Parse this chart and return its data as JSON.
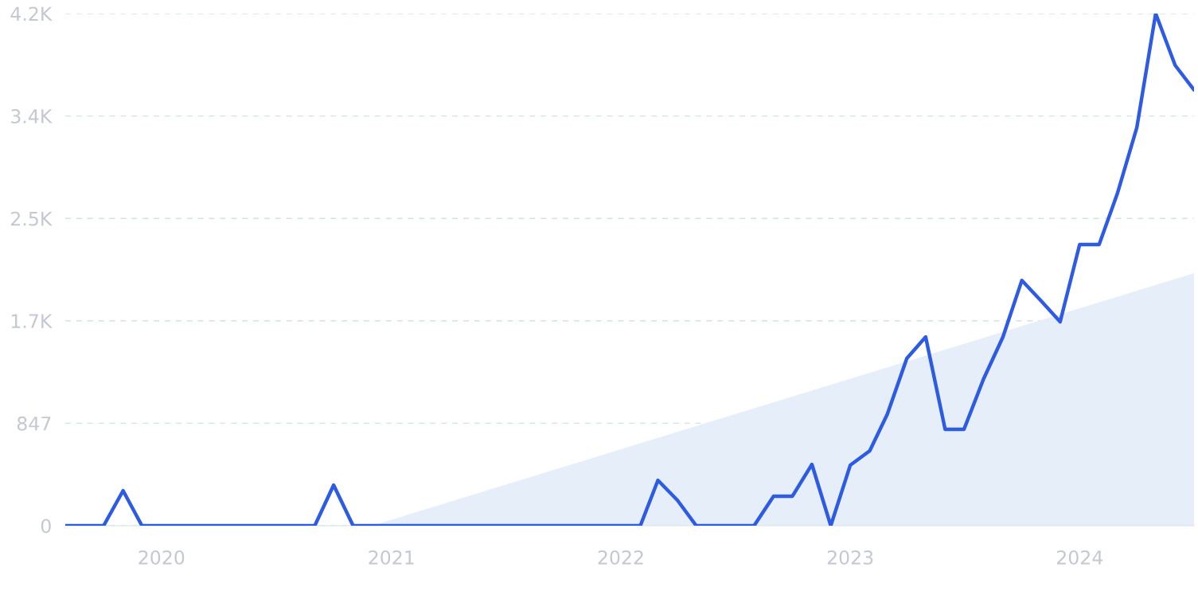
{
  "chart_data": {
    "type": "line",
    "x": [
      "2019-08",
      "2019-09",
      "2019-10",
      "2019-11",
      "2019-12",
      "2020-01",
      "2020-02",
      "2020-03",
      "2020-04",
      "2020-05",
      "2020-06",
      "2020-07",
      "2020-08",
      "2020-09",
      "2020-10",
      "2020-11",
      "2020-12",
      "2021-01",
      "2021-02",
      "2021-03",
      "2021-04",
      "2021-05",
      "2021-06",
      "2021-07",
      "2021-08",
      "2021-09",
      "2021-10",
      "2021-11",
      "2021-12",
      "2022-01",
      "2022-02",
      "2022-03",
      "2022-04",
      "2022-05",
      "2022-06",
      "2022-07",
      "2022-08",
      "2022-09",
      "2022-10",
      "2022-11",
      "2022-12",
      "2023-01",
      "2023-02",
      "2023-03",
      "2023-04",
      "2023-05",
      "2023-06",
      "2023-07",
      "2023-08",
      "2023-09",
      "2023-10",
      "2023-11",
      "2023-12",
      "2024-01",
      "2024-02",
      "2024-03",
      "2024-04",
      "2024-05",
      "2024-06",
      "2024-07"
    ],
    "series": [
      {
        "type": "area",
        "color": "#e6eefa",
        "x": [
          "2020-12",
          "2024-07"
        ],
        "values": [
          0,
          2088
        ]
      },
      {
        "color": "#2d5be3",
        "values": [
          0,
          0,
          0,
          290,
          0,
          0,
          0,
          0,
          0,
          0,
          0,
          0,
          0,
          0,
          336,
          0,
          0,
          0,
          0,
          0,
          0,
          0,
          0,
          0,
          0,
          0,
          0,
          0,
          0,
          0,
          0,
          375,
          211,
          0,
          0,
          0,
          0,
          244,
          244,
          507,
          0,
          500,
          619,
          922,
          1383,
          1561,
          797,
          797,
          1212,
          1561,
          2028,
          1857,
          1686,
          2325,
          2325,
          2746,
          3293,
          4235,
          3807,
          3603
        ]
      }
    ],
    "xlim": [
      "2019-08",
      "2024-07"
    ],
    "xticks": [
      {
        "value": "2020-01",
        "label": "2020"
      },
      {
        "value": "2021-01",
        "label": "2021"
      },
      {
        "value": "2022-01",
        "label": "2022"
      },
      {
        "value": "2023-01",
        "label": "2023"
      },
      {
        "value": "2024-01",
        "label": "2024"
      }
    ],
    "ylim": [
      0,
      4235
    ],
    "yticks": [
      0,
      847,
      {
        "value": 1694,
        "label": "1.7K"
      },
      {
        "value": 2541,
        "label": "2.5K"
      },
      {
        "value": 3388,
        "label": "3.4K"
      },
      {
        "value": 4235,
        "label": "4.2K"
      }
    ],
    "grid": "y",
    "marker": "none",
    "line_style": "solid"
  }
}
